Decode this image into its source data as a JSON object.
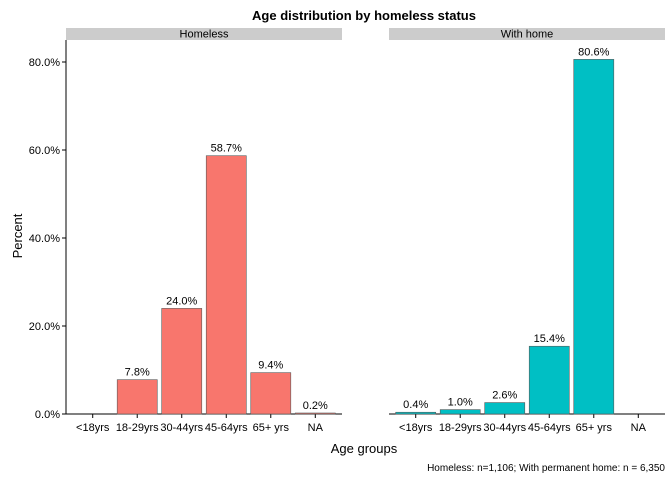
{
  "chart_data": {
    "type": "bar",
    "title": "Age distribution by homeless status",
    "xlabel": "Age groups",
    "ylabel": "Percent",
    "caption": "Homeless: n=1,106; With permanent home: n = 6,350",
    "categories": [
      "<18yrs",
      "18-29yrs",
      "30-44yrs",
      "45-64yrs",
      "65+ yrs",
      "NA"
    ],
    "ylim": [
      0,
      85
    ],
    "yticks": [
      0,
      20,
      40,
      60,
      80
    ],
    "ytick_labels": [
      "0.0%",
      "20.0%",
      "40.0%",
      "60.0%",
      "80.0%"
    ],
    "grid": false,
    "panels": [
      {
        "label": "Homeless",
        "color": "#F8766D",
        "values": [
          null,
          7.8,
          24.0,
          58.7,
          9.4,
          0.2
        ],
        "value_labels": [
          "",
          "7.8%",
          "24.0%",
          "58.7%",
          "9.4%",
          "0.2%"
        ]
      },
      {
        "label": "With home",
        "color": "#00BFC4",
        "values": [
          0.4,
          1.0,
          2.6,
          15.4,
          80.6,
          null
        ],
        "value_labels": [
          "0.4%",
          "1.0%",
          "2.6%",
          "15.4%",
          "80.6%",
          ""
        ]
      }
    ]
  }
}
